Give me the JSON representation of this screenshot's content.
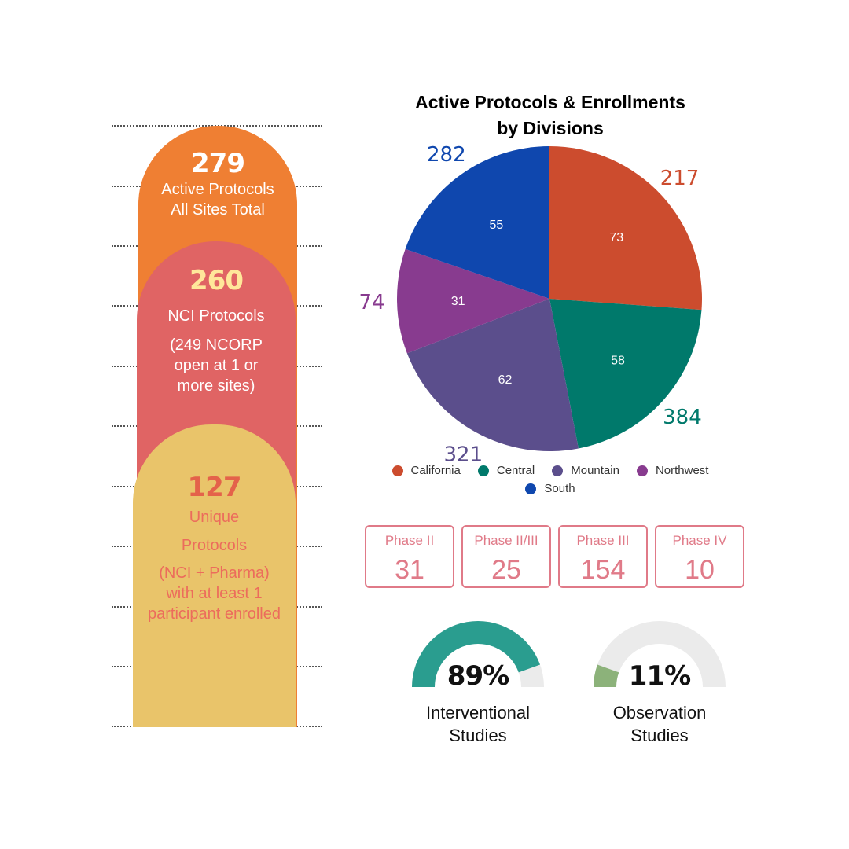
{
  "stats": {
    "active_total": {
      "value": "279",
      "label": "Active Protocols All Sites Total"
    },
    "nci": {
      "value": "260",
      "label": "NCI Protocols",
      "sub": "(249 NCORP open at 1 or more sites)"
    },
    "unique": {
      "value": "127",
      "label_line1": "Unique",
      "label_line2": "Protocols",
      "sub": "(NCI + Pharma) with at least 1 participant enrolled"
    }
  },
  "chart_data": {
    "type": "pie",
    "title_line1": "Active Protocols & Enrollments",
    "title_line2": "by Divisions",
    "categories": [
      "California",
      "Central",
      "Mountain",
      "Northwest",
      "South"
    ],
    "series": [
      {
        "name": "Active Protocols",
        "values": [
          73,
          58,
          62,
          31,
          55
        ]
      },
      {
        "name": "Enrollments",
        "values": [
          217,
          384,
          321,
          74,
          282
        ]
      }
    ],
    "colors": [
      "#cc4c2e",
      "#00796b",
      "#5b4e8c",
      "#883b8f",
      "#0f47ae"
    ],
    "legend_position": "bottom"
  },
  "phases": [
    {
      "label": "Phase II",
      "value": "31"
    },
    {
      "label": "Phase II/III",
      "value": "25"
    },
    {
      "label": "Phase III",
      "value": "154"
    },
    {
      "label": "Phase IV",
      "value": "10"
    }
  ],
  "gauges": [
    {
      "pct_text": "89%",
      "fraction": 0.89,
      "label_line1": "Interventional",
      "label_line2": "Studies",
      "color": "#2a9d8f"
    },
    {
      "pct_text": "11%",
      "fraction": 0.11,
      "label_line1": "Observation",
      "label_line2": "Studies",
      "color": "#8cb27a"
    }
  ],
  "gauge_track_color": "#ebebeb"
}
